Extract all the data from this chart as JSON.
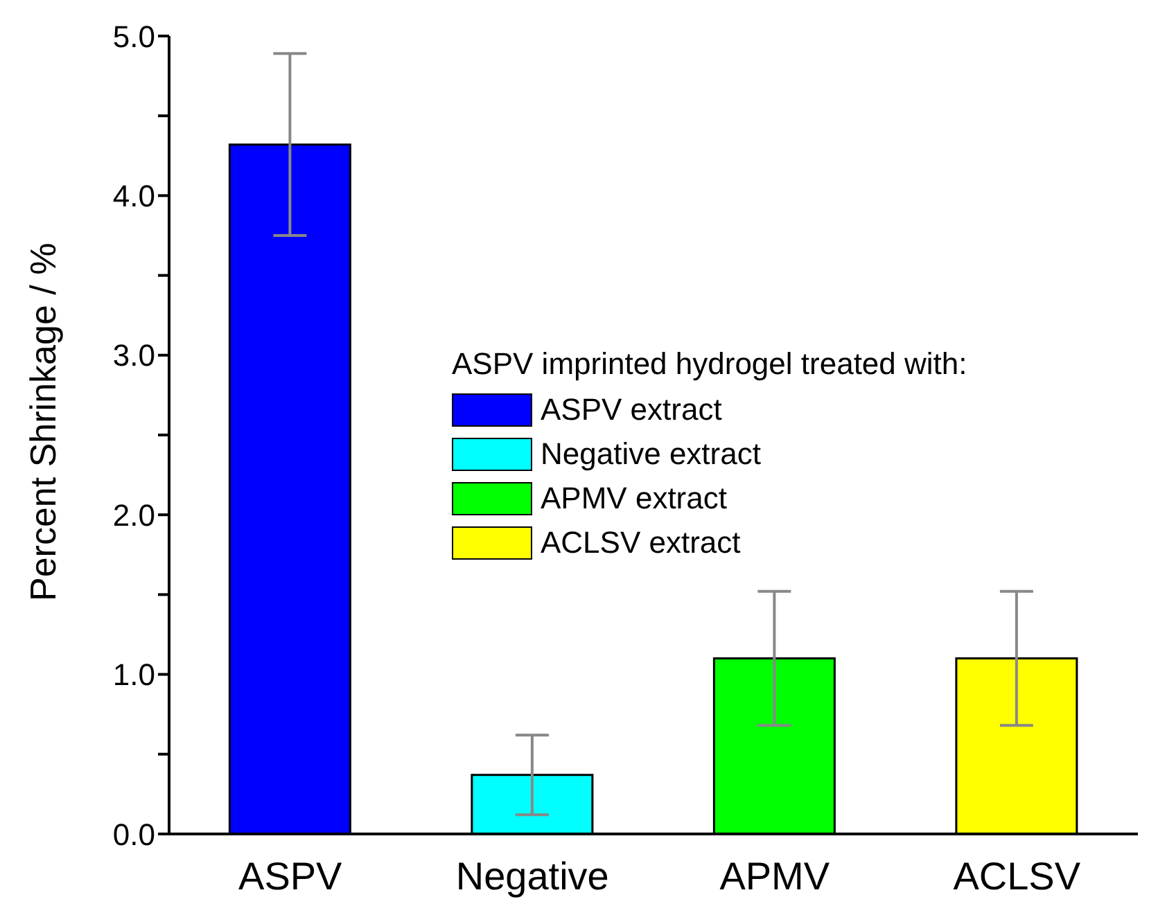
{
  "chart_data": {
    "type": "bar",
    "ylabel": "Percent Shrinkage / %",
    "legend_title": "ASPV imprinted hydrogel treated with:",
    "categories": [
      "ASPV",
      "Negative",
      "APMV",
      "ACLSV"
    ],
    "series": [
      {
        "name": "ASPV extract",
        "color": "#0000ff",
        "values": [
          4.32,
          null,
          null,
          null
        ],
        "errors": [
          0.57,
          null,
          null,
          null
        ]
      },
      {
        "name": "Negative extract",
        "color": "#00ffff",
        "values": [
          null,
          0.37,
          null,
          null
        ],
        "errors": [
          null,
          0.25,
          null,
          null
        ]
      },
      {
        "name": "APMV extract",
        "color": "#00ff00",
        "values": [
          null,
          null,
          1.1,
          null
        ],
        "errors": [
          null,
          null,
          0.42,
          null
        ]
      },
      {
        "name": "ACLSV extract",
        "color": "#ffff00",
        "values": [
          null,
          null,
          null,
          1.1
        ],
        "errors": [
          null,
          null,
          null,
          0.42
        ]
      }
    ],
    "stacked": true,
    "ylim": [
      0,
      5
    ],
    "yticks": [
      {
        "value": 0,
        "label": "0.0"
      },
      {
        "value": 0.5,
        "label": null
      },
      {
        "value": 1,
        "label": "1.0"
      },
      {
        "value": 1.5,
        "label": null
      },
      {
        "value": 2,
        "label": "2.0"
      },
      {
        "value": 2.5,
        "label": null
      },
      {
        "value": 3,
        "label": "3.0"
      },
      {
        "value": 3.5,
        "label": null
      },
      {
        "value": 4,
        "label": "4.0"
      },
      {
        "value": 4.5,
        "label": null
      },
      {
        "value": 5,
        "label": "5.0"
      }
    ],
    "legend": "center",
    "grid": false
  }
}
